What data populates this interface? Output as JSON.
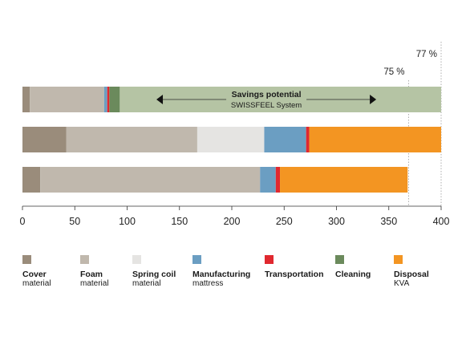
{
  "chart_data": {
    "type": "bar",
    "orientation": "horizontal",
    "stacked": true,
    "xlim": [
      0,
      400
    ],
    "x_ticks": [
      0,
      50,
      100,
      150,
      200,
      250,
      300,
      350,
      400
    ],
    "title": "",
    "xlabel": "",
    "ylabel": "",
    "legend_position": "bottom",
    "segments": [
      {
        "name": "Cover",
        "sub": "material",
        "color": "#9a8c7b"
      },
      {
        "name": "Foam",
        "sub": "material",
        "color": "#c0b8ad"
      },
      {
        "name": "Spring coil",
        "sub": "material",
        "color": "#e5e4e2"
      },
      {
        "name": "Manufacturing",
        "sub": "mattress",
        "color": "#6b9ec2"
      },
      {
        "name": "Transportation",
        "sub": "",
        "color": "#e0282f"
      },
      {
        "name": "Cleaning",
        "sub": "",
        "color": "#6b8a5c"
      },
      {
        "name": "Disposal",
        "sub": "KVA",
        "color": "#f39522"
      }
    ],
    "bars": [
      {
        "values": [
          7,
          71,
          0,
          3,
          2,
          10,
          0
        ],
        "remainder_to": 400,
        "remainder_color": "#b5c4a4"
      },
      {
        "values": [
          42,
          125,
          64,
          40,
          3,
          0,
          126
        ],
        "remainder_to": null,
        "remainder_color": null
      },
      {
        "values": [
          17,
          210,
          0,
          15,
          4,
          0,
          122
        ],
        "remainder_to": null,
        "remainder_color": null
      }
    ],
    "reference_lines": [
      {
        "x": 369,
        "label": "75 %"
      },
      {
        "x": 400,
        "label": "77 %"
      }
    ],
    "annotation": {
      "title": "Savings potential",
      "subtitle": "SWISSFEEL System",
      "x_from": 128,
      "x_to": 338
    }
  }
}
